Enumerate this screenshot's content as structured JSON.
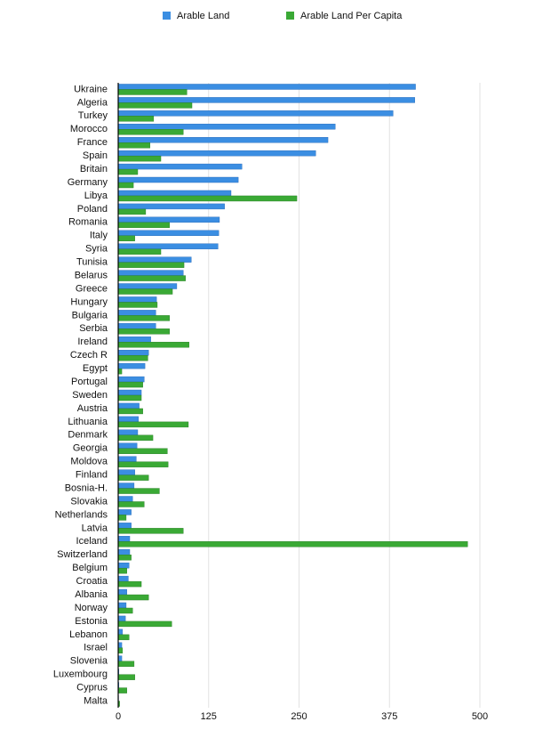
{
  "chart_data": {
    "type": "bar",
    "orientation": "horizontal",
    "categories": [
      "Ukraine",
      "Algeria",
      "Turkey",
      "Morocco",
      "France",
      "Spain",
      "Britain",
      "Germany",
      "Libya",
      "Poland",
      "Romania",
      "Italy",
      "Syria",
      "Tunisia",
      "Belarus",
      "Greece",
      "Hungary",
      "Bulgaria",
      "Serbia",
      "Ireland",
      "Czech R",
      "Egypt",
      "Portugal",
      "Sweden",
      "Austria",
      "Lithuania",
      "Denmark",
      "Georgia",
      "Moldova",
      "Finland",
      "Bosnia-H.",
      "Slovakia",
      "Netherlands",
      "Latvia",
      "Iceland",
      "Switzerland",
      "Belgium",
      "Croatia",
      "Albania",
      "Norway",
      "Estonia",
      "Lebanon",
      "Israel",
      "Slovenia",
      "Luxembourg",
      "Cyprus",
      "Malta"
    ],
    "series": [
      {
        "name": "Arable Land",
        "color": "#3b8ee2",
        "values": [
          411,
          410,
          380,
          300,
          290,
          273,
          171,
          166,
          156,
          147,
          140,
          139,
          138,
          101,
          90,
          81,
          53,
          52,
          52,
          45,
          42,
          37,
          36,
          32,
          29,
          28,
          27,
          26,
          25,
          23,
          22,
          20,
          18,
          18,
          16,
          16,
          15,
          14,
          12,
          11,
          10,
          6,
          5,
          5,
          1,
          1,
          0.5
        ]
      },
      {
        "name": "Arable Land Per Capita",
        "color": "#3aa935",
        "values": [
          95,
          102,
          49,
          90,
          44,
          59,
          27,
          21,
          247,
          38,
          71,
          23,
          59,
          91,
          93,
          75,
          54,
          71,
          71,
          98,
          41,
          5,
          34,
          32,
          34,
          97,
          48,
          68,
          69,
          42,
          57,
          36,
          11,
          90,
          483,
          18,
          12,
          32,
          42,
          20,
          74,
          15,
          6,
          22,
          23,
          12,
          2
        ]
      }
    ],
    "xlim": [
      0,
      500
    ],
    "xticks": [
      0,
      125,
      250,
      375,
      500
    ],
    "grid": true,
    "legend": "top"
  }
}
